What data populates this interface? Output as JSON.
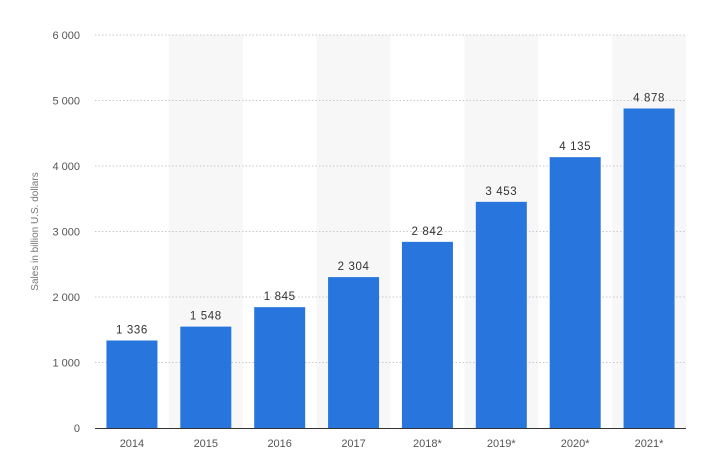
{
  "chart_data": {
    "type": "bar",
    "title": "",
    "xlabel": "",
    "ylabel": "Sales in billion U.S. dollars",
    "categories": [
      "2014",
      "2015",
      "2016",
      "2017",
      "2018*",
      "2019*",
      "2020*",
      "2021*"
    ],
    "values": [
      1336,
      1548,
      1845,
      2304,
      2842,
      3453,
      4135,
      4878
    ],
    "value_labels": [
      "1 336",
      "1 548",
      "1 845",
      "2 304",
      "2 842",
      "3 453",
      "4 135",
      "4 878"
    ],
    "ylim": [
      0,
      6000
    ],
    "yticks": [
      0,
      1000,
      2000,
      3000,
      4000,
      5000,
      6000
    ],
    "ytick_labels": [
      "0",
      "1 000",
      "2 000",
      "3 000",
      "4 000",
      "5 000",
      "6 000"
    ],
    "grid": true,
    "legend": "none",
    "colors": {
      "bar": "#2876dd",
      "band": "#f7f7f7",
      "grid": "#c8c8c8",
      "axis": "#333333"
    }
  }
}
